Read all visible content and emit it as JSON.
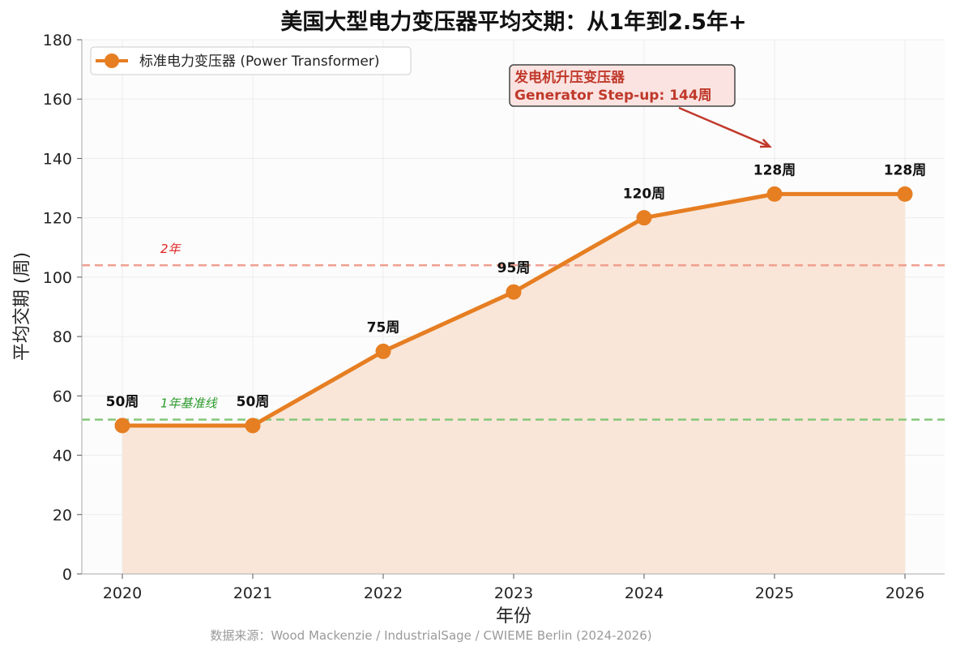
{
  "chart_data": {
    "type": "line",
    "title": "美国大型电力变压器平均交期：从1年到2.5年+",
    "xlabel": "年份",
    "ylabel": "平均交期 (周)",
    "categories": [
      "2020",
      "2021",
      "2022",
      "2023",
      "2024",
      "2025",
      "2026"
    ],
    "series": [
      {
        "name": "标准电力变压器 (Power Transformer)",
        "values": [
          50,
          50,
          75,
          95,
          120,
          128,
          128
        ],
        "data_labels": [
          "50周",
          "50周",
          "75周",
          "95周",
          "120周",
          "128周",
          "128周"
        ],
        "color": "#e67e22",
        "fill_color": "#f9e6d8"
      }
    ],
    "ylim": [
      0,
      180
    ],
    "yticks": [
      "0",
      "20",
      "40",
      "60",
      "80",
      "100",
      "120",
      "140",
      "160",
      "180"
    ],
    "grid": true,
    "legend_position": "top-left",
    "reference_lines": [
      {
        "value": 104,
        "label": "2年",
        "color": "#f0a090",
        "label_color": "#e02020"
      },
      {
        "value": 52,
        "label": "1年基准线",
        "color": "#86c77a",
        "label_color": "#2a9a2a"
      }
    ],
    "annotation": {
      "line1": "发电机升压变压器",
      "line2": "Generator Step-up: 144周",
      "target_x": "2025",
      "target_value": 144,
      "text_color": "#c0392b",
      "box_fill": "#fae3e1"
    },
    "source": "数据来源：Wood Mackenzie / IndustrialSage / CWIEME Berlin (2024-2026)"
  }
}
